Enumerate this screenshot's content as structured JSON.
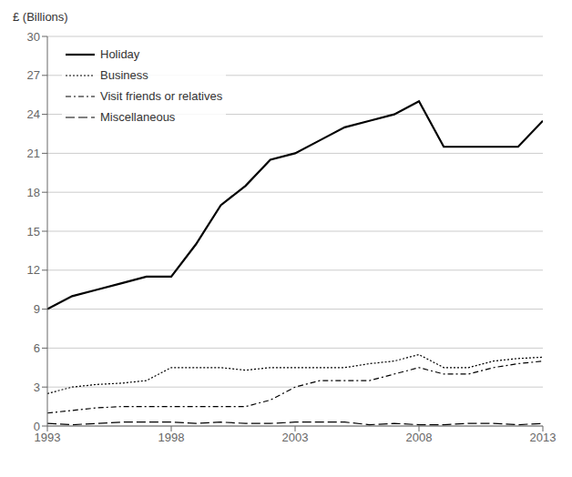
{
  "chart_data": {
    "type": "line",
    "ylabel": "£ (Billions)",
    "x": [
      1993,
      1994,
      1995,
      1996,
      1997,
      1998,
      1999,
      2000,
      2001,
      2002,
      2003,
      2004,
      2005,
      2006,
      2007,
      2008,
      2009,
      2010,
      2011,
      2012,
      2013
    ],
    "series": [
      {
        "name": "Holiday",
        "color": "#000000",
        "line_style": "solid",
        "values": [
          9.0,
          10.0,
          10.5,
          11.0,
          11.5,
          11.5,
          14.0,
          17.0,
          18.5,
          20.5,
          21.0,
          22.0,
          23.0,
          23.5,
          24.0,
          25.0,
          21.5,
          21.5,
          21.5,
          21.5,
          23.5
        ]
      },
      {
        "name": "Business",
        "color": "#000000",
        "line_style": "dotted",
        "values": [
          2.5,
          3.0,
          3.2,
          3.3,
          3.5,
          4.5,
          4.5,
          4.5,
          4.3,
          4.5,
          4.5,
          4.5,
          4.5,
          4.8,
          5.0,
          5.5,
          4.5,
          4.5,
          5.0,
          5.2,
          5.3
        ]
      },
      {
        "name": "Visit friends or relatives",
        "color": "#000000",
        "line_style": "dashdot",
        "values": [
          1.0,
          1.2,
          1.4,
          1.5,
          1.5,
          1.5,
          1.5,
          1.5,
          1.5,
          2.0,
          3.0,
          3.5,
          3.5,
          3.5,
          4.0,
          4.5,
          4.0,
          4.0,
          4.5,
          4.8,
          5.0
        ]
      },
      {
        "name": "Miscellaneous",
        "color": "#000000",
        "line_style": "dashed",
        "values": [
          0.2,
          0.1,
          0.2,
          0.3,
          0.3,
          0.3,
          0.2,
          0.3,
          0.2,
          0.2,
          0.3,
          0.3,
          0.3,
          0.1,
          0.2,
          0.1,
          0.1,
          0.2,
          0.2,
          0.1,
          0.2
        ]
      }
    ],
    "xlim": [
      1993,
      2013
    ],
    "xticks": [
      1993,
      1998,
      2003,
      2008,
      2013
    ],
    "ylim": [
      0,
      30
    ],
    "yticks": [
      0,
      3,
      6,
      9,
      12,
      15,
      18,
      21,
      24,
      27,
      30
    ],
    "grid": "y",
    "legend": "upper left"
  }
}
